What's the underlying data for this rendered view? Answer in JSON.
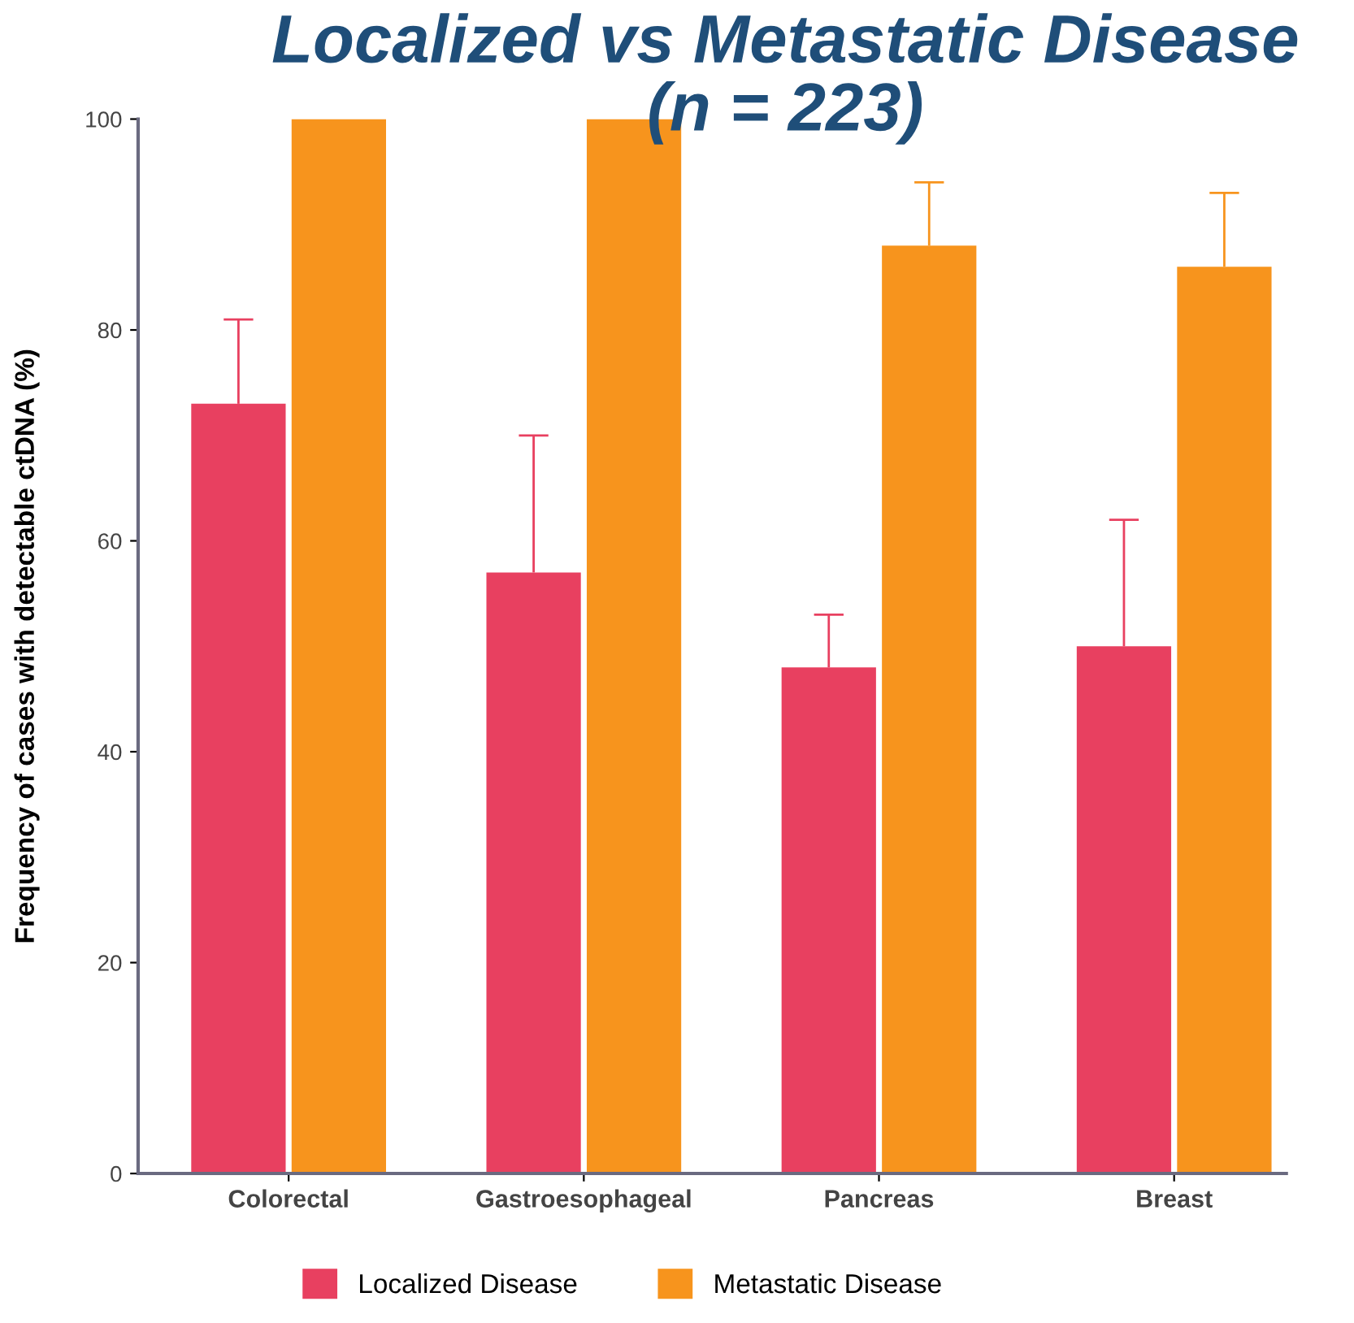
{
  "chart_data": {
    "type": "bar",
    "title": "Localized vs Metastatic Disease\n(n = 223)",
    "ylabel": "Frequency of cases with detectable ctDNA (%)",
    "categories": [
      "Colorectal",
      "Gastroesophageal",
      "Pancreas",
      "Breast"
    ],
    "series": [
      {
        "name": "Localized Disease",
        "color": "#e84060",
        "values": [
          73,
          57,
          48,
          50
        ],
        "errors": [
          [
            73,
            81
          ],
          [
            57,
            70
          ],
          [
            48,
            53
          ],
          [
            50,
            62
          ]
        ]
      },
      {
        "name": "Metastatic Disease",
        "color": "#f7941d",
        "values": [
          100,
          100,
          88,
          86
        ],
        "errors": [
          null,
          null,
          [
            88,
            94
          ],
          [
            86,
            93
          ]
        ]
      }
    ],
    "ylim": [
      0,
      100
    ],
    "yticks": [
      0,
      20,
      40,
      60,
      80,
      100
    ],
    "grid": false,
    "legend": "bottom"
  }
}
